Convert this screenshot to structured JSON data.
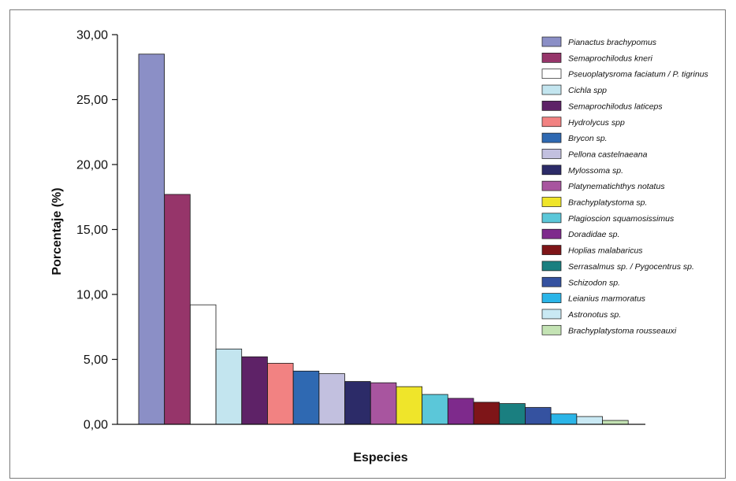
{
  "chart_data": {
    "type": "bar",
    "title": "",
    "xlabel": "Especies",
    "ylabel": "Porcentaje (%)",
    "ylim": [
      0,
      30
    ],
    "yticks": [
      "0,00",
      "5,00",
      "10,00",
      "15,00",
      "20,00",
      "25,00",
      "30,00"
    ],
    "grid": false,
    "legend_position": "top-right",
    "categories": [
      "Pianactus brachypomus",
      "Semaprochilodus kneri",
      "Pseuoplatysroma faciatum / P. tigrinus",
      "Cichla spp",
      "Semaprochilodus laticeps",
      "Hydrolycus spp",
      "Brycon sp.",
      "Pellona castelnaeana",
      "Mylossoma sp.",
      "Platynematichthys notatus",
      "Brachyplatystoma sp.",
      "Plagioscion squamosissimus",
      "Doradidae sp.",
      "Hoplias malabaricus",
      "Serrasalmus sp. / Pygocentrus sp.",
      "Schizodon sp.",
      "Leianius marmoratus",
      "Astronotus sp.",
      "Brachyplatystoma rousseauxi"
    ],
    "values": [
      28.5,
      17.7,
      9.2,
      5.8,
      5.2,
      4.7,
      4.1,
      3.9,
      3.3,
      3.2,
      2.9,
      2.3,
      2.0,
      1.7,
      1.6,
      1.3,
      0.8,
      0.6,
      0.3
    ],
    "colors": [
      "#8b8fc6",
      "#96356a",
      "#ffffff",
      "#c3e5ef",
      "#5e2267",
      "#f28282",
      "#2f69b2",
      "#c2c0df",
      "#2c2b68",
      "#a8559f",
      "#efe52a",
      "#5bc7d9",
      "#7e2a8c",
      "#7e1518",
      "#1a7f80",
      "#3552a0",
      "#2bb5e8",
      "#c9e9f4",
      "#c4e3b4"
    ]
  }
}
